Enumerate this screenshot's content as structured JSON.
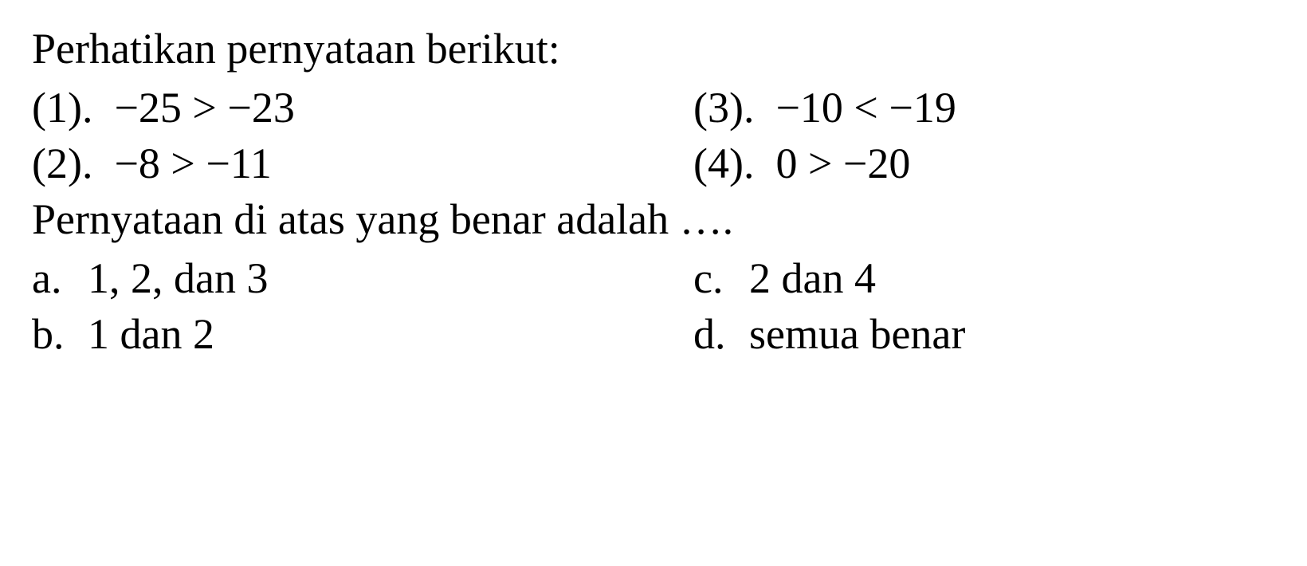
{
  "question": {
    "intro": "Perhatikan pernyataan berikut:",
    "statements": [
      {
        "num": "(1).",
        "expr": "−25 > −23"
      },
      {
        "num": "(2).",
        "expr": "−8 > −11"
      },
      {
        "num": "(3).",
        "expr": "−10 < −19"
      },
      {
        "num": "(4).",
        "expr": "0 > −20"
      }
    ],
    "prompt": "Pernyataan di atas yang benar adalah ….",
    "options": [
      {
        "label": "a.",
        "text": "1, 2, dan 3"
      },
      {
        "label": "b.",
        "text": "1 dan 2"
      },
      {
        "label": "c.",
        "text": "2 dan 4"
      },
      {
        "label": "d.",
        "text": "semua benar"
      }
    ]
  },
  "style": {
    "background_color": "#ffffff",
    "text_color": "#000000",
    "font_family": "Times New Roman",
    "font_size_pt": 40
  }
}
